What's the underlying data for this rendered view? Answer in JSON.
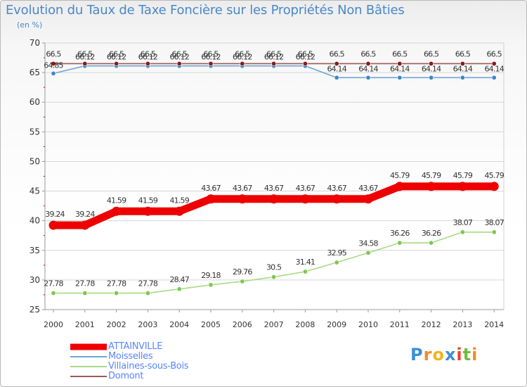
{
  "header": {
    "title": "Evolution du Taux de Taxe Foncière sur les Propriétés Non Bâties",
    "unit": "(en %)"
  },
  "logo": {
    "letters": [
      "P",
      "r",
      "o",
      "x",
      "i",
      "t",
      "i"
    ],
    "colors": [
      "#3a8fd8",
      "#f28c28",
      "#f0b51f",
      "#3a8fd8",
      "#e8442b",
      "#6dbe3b",
      "#f28c28"
    ]
  },
  "chart_data": {
    "type": "line",
    "title": "Evolution du Taux de Taxe Foncière sur les Propriétés Non Bâties",
    "ylabel": "(en %)",
    "xlabel": "",
    "ylim": [
      25,
      70
    ],
    "yticks": [
      25,
      30,
      35,
      40,
      45,
      50,
      55,
      60,
      65,
      70
    ],
    "grid": "horizontal",
    "legend_position": "bottom-left",
    "categories": [
      "2000",
      "2001",
      "2002",
      "2003",
      "2004",
      "2005",
      "2006",
      "2007",
      "2008",
      "2009",
      "2010",
      "2011",
      "2012",
      "2013",
      "2014"
    ],
    "series": [
      {
        "name": "ATTAINVILLE",
        "color": "#ee0000",
        "width": "thick",
        "values": [
          39.24,
          39.24,
          41.59,
          41.59,
          41.59,
          43.67,
          43.67,
          43.67,
          43.67,
          43.67,
          43.67,
          45.79,
          45.79,
          45.79,
          45.79
        ],
        "labels": [
          "39.24",
          "39.24",
          "41.59",
          "41.59",
          "41.59",
          "43.67",
          "43.67",
          "43.67",
          "43.67",
          "43.67",
          "43.67",
          "45.79",
          "45.79",
          "45.79",
          "45.79"
        ]
      },
      {
        "name": "Moisselles",
        "color": "#6fa4d6",
        "marker": "#3f86c9",
        "width": "thin",
        "values": [
          64.85,
          66.12,
          66.12,
          66.12,
          66.12,
          66.12,
          66.12,
          66.12,
          66.12,
          64.14,
          64.14,
          64.14,
          64.14,
          64.14,
          64.14
        ],
        "labels": [
          "64.85",
          "66.12",
          "66.12",
          "66.12",
          "66.12",
          "66.12",
          "66.12",
          "66.12",
          "66.12",
          "64.14",
          "64.14",
          "64.14",
          "64.14",
          "64.14",
          "64.14"
        ]
      },
      {
        "name": "Villaines-sous-Bois",
        "color": "#a8da84",
        "marker": "#7ec850",
        "width": "thin",
        "values": [
          27.78,
          27.78,
          27.78,
          27.78,
          28.47,
          29.18,
          29.76,
          30.5,
          31.41,
          32.95,
          34.58,
          36.26,
          36.26,
          38.07,
          38.07
        ],
        "labels": [
          "27.78",
          "27.78",
          "27.78",
          "27.78",
          "28.47",
          "29.18",
          "29.76",
          "30.5",
          "31.41",
          "32.95",
          "34.58",
          "36.26",
          "36.26",
          "38.07",
          "38.07"
        ]
      },
      {
        "name": "Domont",
        "color": "#9b5a5a",
        "marker": "#8b1a1a",
        "width": "thin",
        "values": [
          66.5,
          66.5,
          66.5,
          66.5,
          66.5,
          66.5,
          66.5,
          66.5,
          66.5,
          66.5,
          66.5,
          66.5,
          66.5,
          66.5,
          66.5
        ],
        "labels": [
          "66.5",
          "66.5",
          "66.5",
          "66.5",
          "66.5",
          "66.5",
          "66.5",
          "66.5",
          "66.5",
          "66.5",
          "66.5",
          "66.5",
          "66.5",
          "66.5",
          "66.5"
        ]
      }
    ]
  }
}
